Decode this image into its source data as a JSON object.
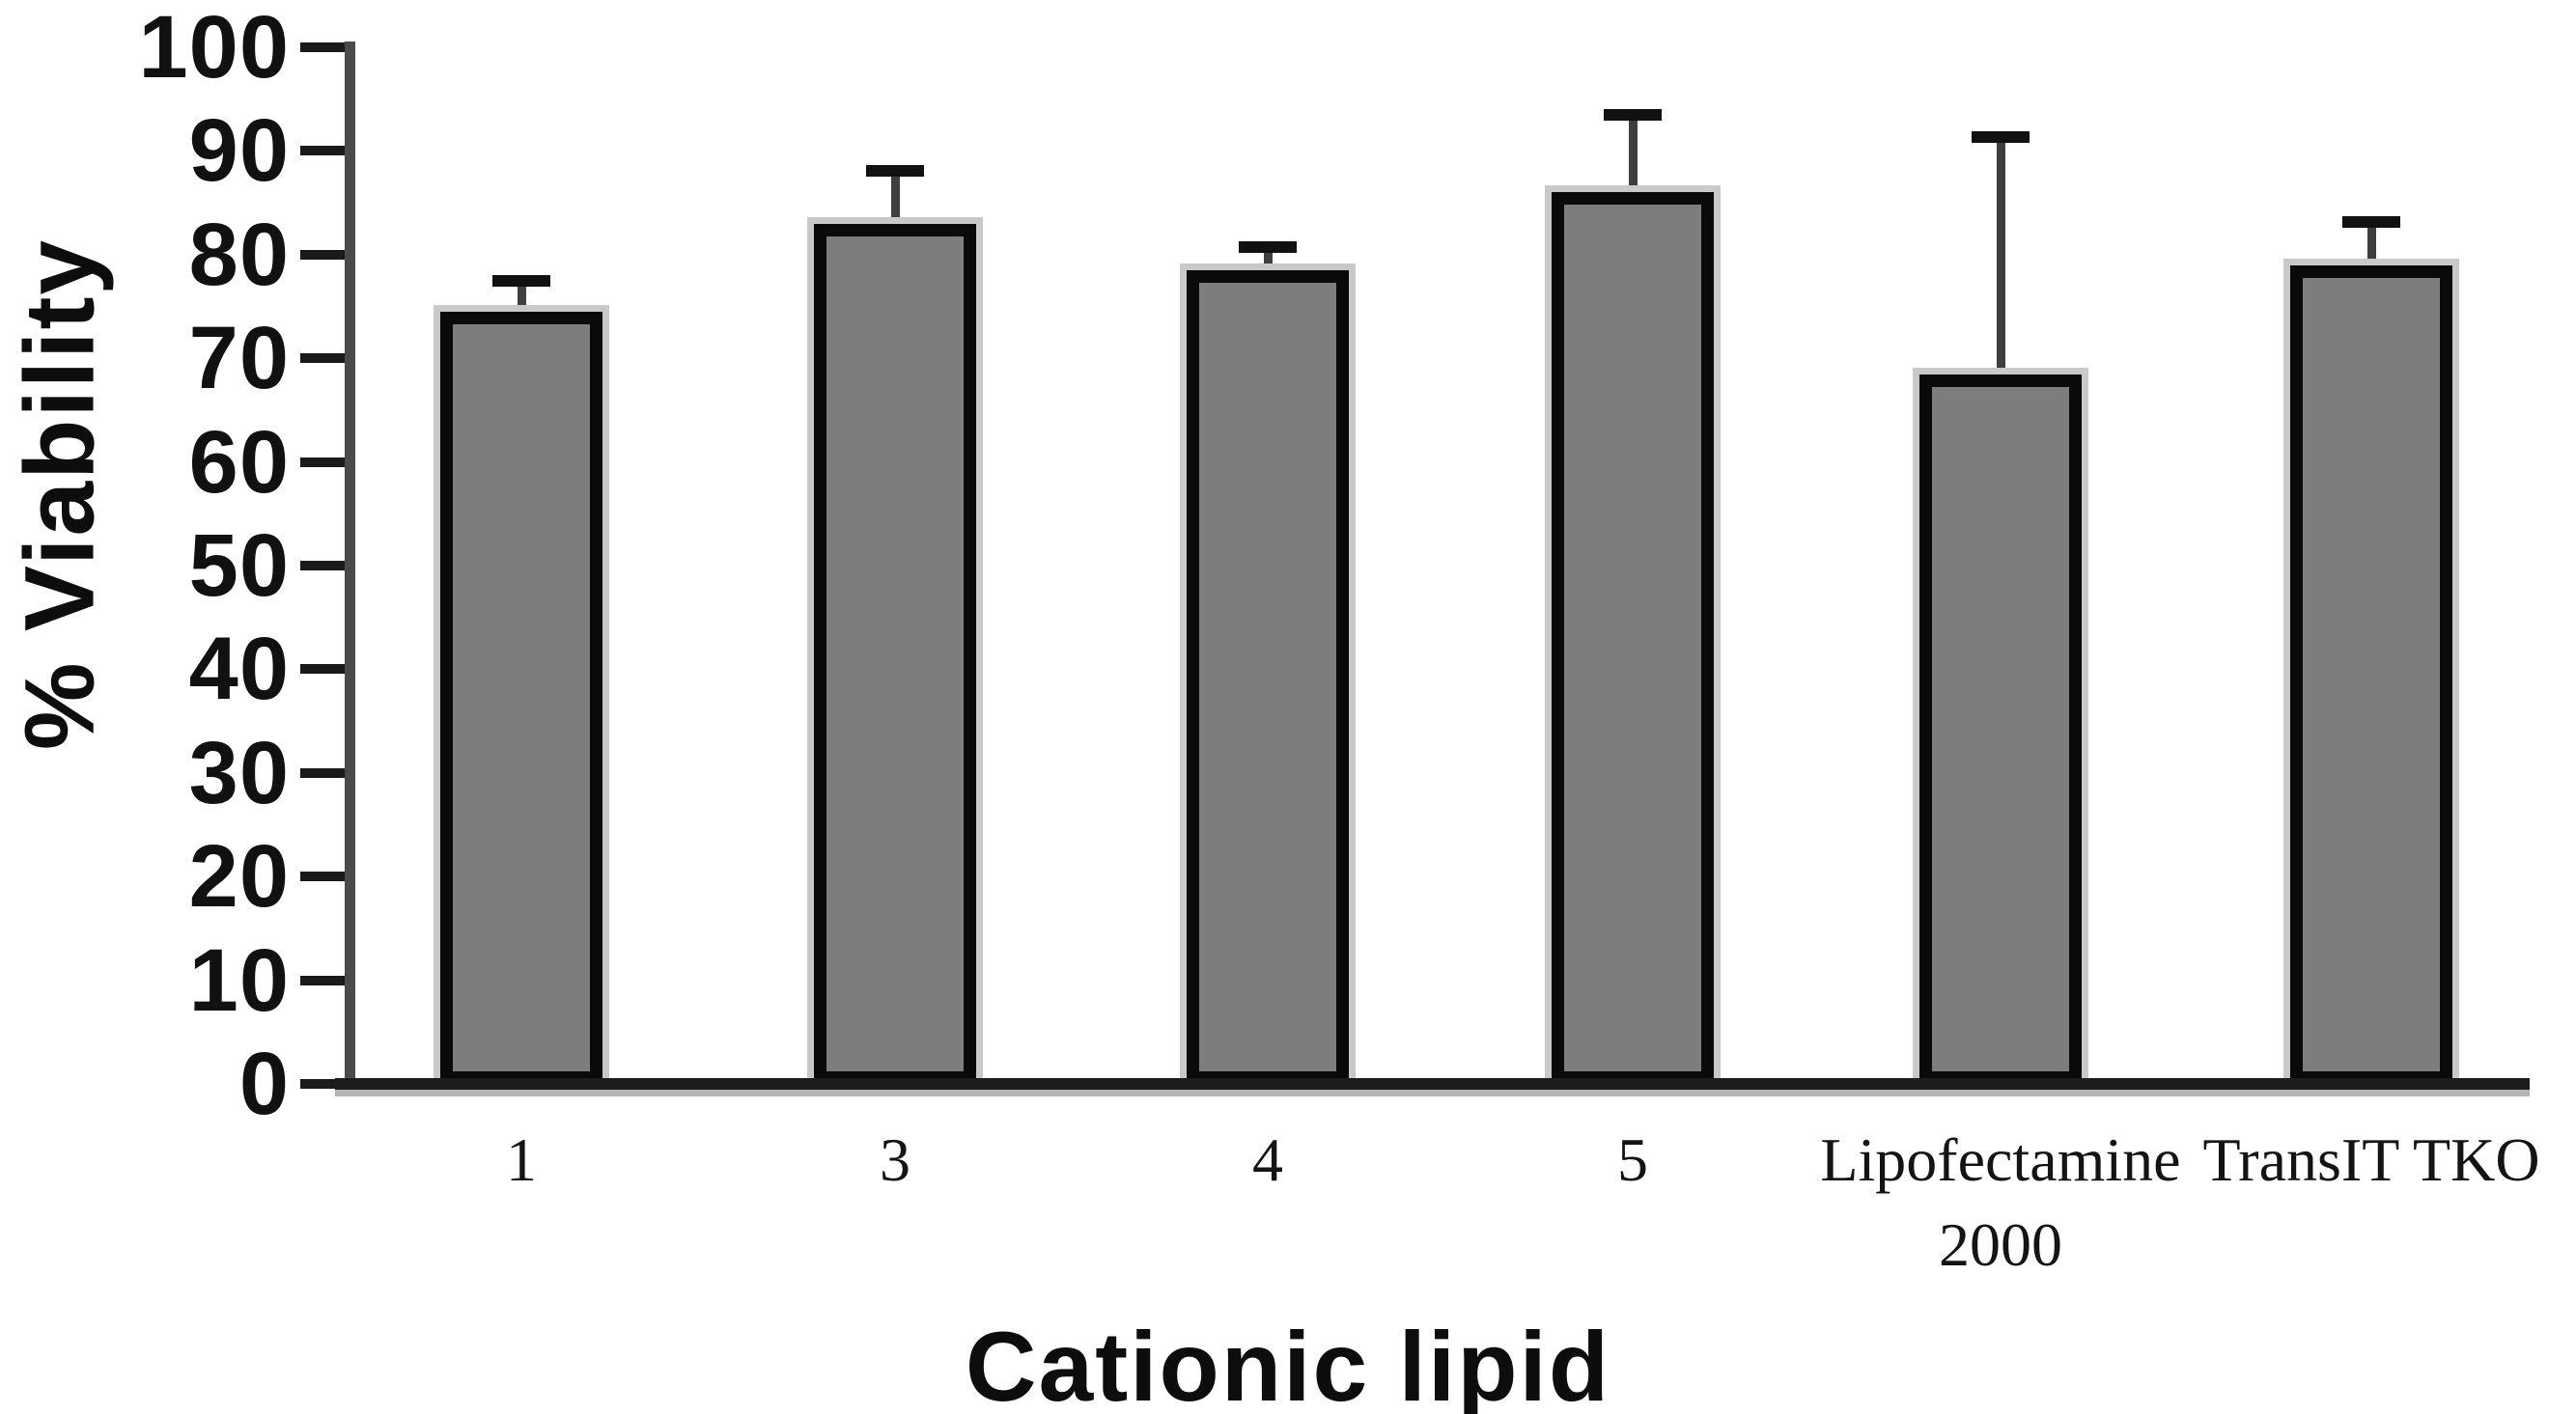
{
  "figure": {
    "background": "#ffffff",
    "kind": "bar chart of cell viability per transfection reagent"
  },
  "chart_data": {
    "type": "bar",
    "title": "",
    "xlabel": "Cationic lipid",
    "ylabel": "% Viability",
    "categories": [
      "1",
      "3",
      "4",
      "5",
      "Lipofectamine 2000",
      "TransIT TKO"
    ],
    "category_label_lines": [
      [
        "1"
      ],
      [
        "3"
      ],
      [
        "4"
      ],
      [
        "5"
      ],
      [
        "Lipofectamine",
        "2000"
      ],
      [
        "TransIT TKO"
      ]
    ],
    "values": [
      74.5,
      83,
      78.5,
      86,
      68.4,
      79
    ],
    "errors_plus": [
      2.6,
      4.7,
      1.9,
      7.1,
      22.6,
      3.8
    ],
    "ylim": [
      0,
      100
    ],
    "yticks": [
      0,
      10,
      20,
      30,
      40,
      50,
      60,
      70,
      80,
      90,
      100
    ],
    "grid": false,
    "legend": null,
    "colors": {
      "bar_fill": "#7d7d7d",
      "bar_border": "#0a0a0a",
      "bar_halo": "#c9c9c9",
      "error_stem": "#3f3f3f",
      "error_cap": "#111111",
      "axis_line": "#4a4a4a",
      "baseline": "#1c1c1c",
      "tick": "#1a1a1a",
      "text": "#111111"
    }
  }
}
